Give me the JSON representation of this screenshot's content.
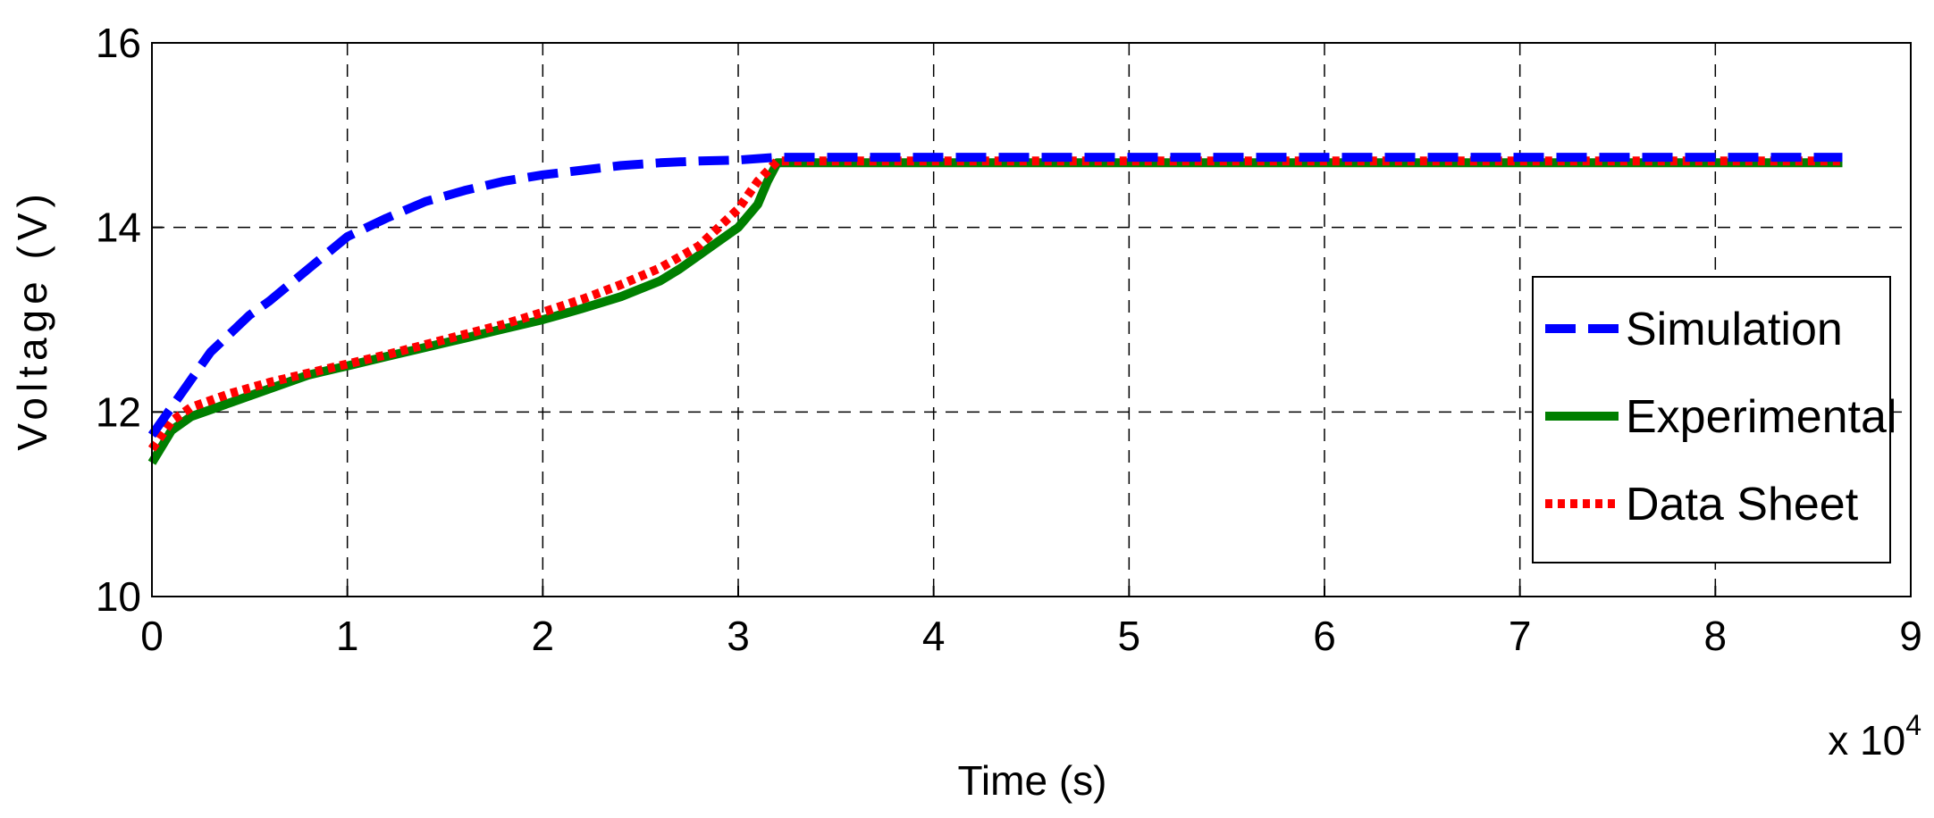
{
  "chart_data": {
    "type": "line",
    "title": "",
    "xlabel": "Time (s)",
    "ylabel": "Voltage (V)",
    "x_multiplier_label": "x 10",
    "x_multiplier_exponent": "4",
    "xlim": [
      0,
      9
    ],
    "ylim": [
      10,
      16
    ],
    "xticks": [
      "0",
      "1",
      "2",
      "3",
      "4",
      "5",
      "6",
      "7",
      "8",
      "9"
    ],
    "yticks": [
      "10",
      "12",
      "14",
      "16"
    ],
    "grid": true,
    "legend_position": "right",
    "series": [
      {
        "name": "Simulation",
        "color": "#0000ff",
        "style": "dashed",
        "x": [
          0,
          0.1,
          0.2,
          0.3,
          0.4,
          0.5,
          0.6,
          0.8,
          1.0,
          1.2,
          1.4,
          1.6,
          1.8,
          2.0,
          2.2,
          2.4,
          2.6,
          2.8,
          3.0,
          3.2,
          4,
          5,
          6,
          7,
          8,
          8.65
        ],
        "y": [
          11.75,
          12.05,
          12.35,
          12.65,
          12.85,
          13.05,
          13.2,
          13.55,
          13.9,
          14.1,
          14.28,
          14.4,
          14.5,
          14.57,
          14.62,
          14.67,
          14.7,
          14.72,
          14.73,
          14.76,
          14.76,
          14.76,
          14.76,
          14.76,
          14.76,
          14.76
        ]
      },
      {
        "name": "Experimental",
        "color": "#007f00",
        "style": "solid",
        "x": [
          0,
          0.1,
          0.2,
          0.4,
          0.6,
          0.8,
          1.0,
          1.2,
          1.4,
          1.6,
          1.8,
          2.0,
          2.2,
          2.4,
          2.6,
          2.7,
          2.8,
          2.9,
          3.0,
          3.1,
          3.15,
          3.2,
          4,
          5,
          6,
          7,
          8,
          8.65
        ],
        "y": [
          11.45,
          11.8,
          11.95,
          12.1,
          12.25,
          12.4,
          12.5,
          12.6,
          12.7,
          12.8,
          12.9,
          13.0,
          13.12,
          13.25,
          13.42,
          13.55,
          13.7,
          13.85,
          14.0,
          14.25,
          14.5,
          14.7,
          14.7,
          14.7,
          14.7,
          14.7,
          14.7,
          14.7
        ]
      },
      {
        "name": "Data Sheet",
        "color": "#ff0000",
        "style": "dotted",
        "x": [
          0,
          0.1,
          0.2,
          0.4,
          0.6,
          0.8,
          1.0,
          1.2,
          1.4,
          1.6,
          1.8,
          2.0,
          2.2,
          2.4,
          2.6,
          2.8,
          2.9,
          3.0,
          3.1,
          3.2,
          4,
          5,
          6,
          7,
          8,
          8.65
        ],
        "y": [
          11.6,
          11.9,
          12.05,
          12.2,
          12.32,
          12.42,
          12.52,
          12.62,
          12.73,
          12.84,
          12.95,
          13.08,
          13.22,
          13.38,
          13.56,
          13.8,
          14.0,
          14.2,
          14.5,
          14.72,
          14.72,
          14.72,
          14.72,
          14.72,
          14.72,
          14.72
        ]
      }
    ]
  }
}
